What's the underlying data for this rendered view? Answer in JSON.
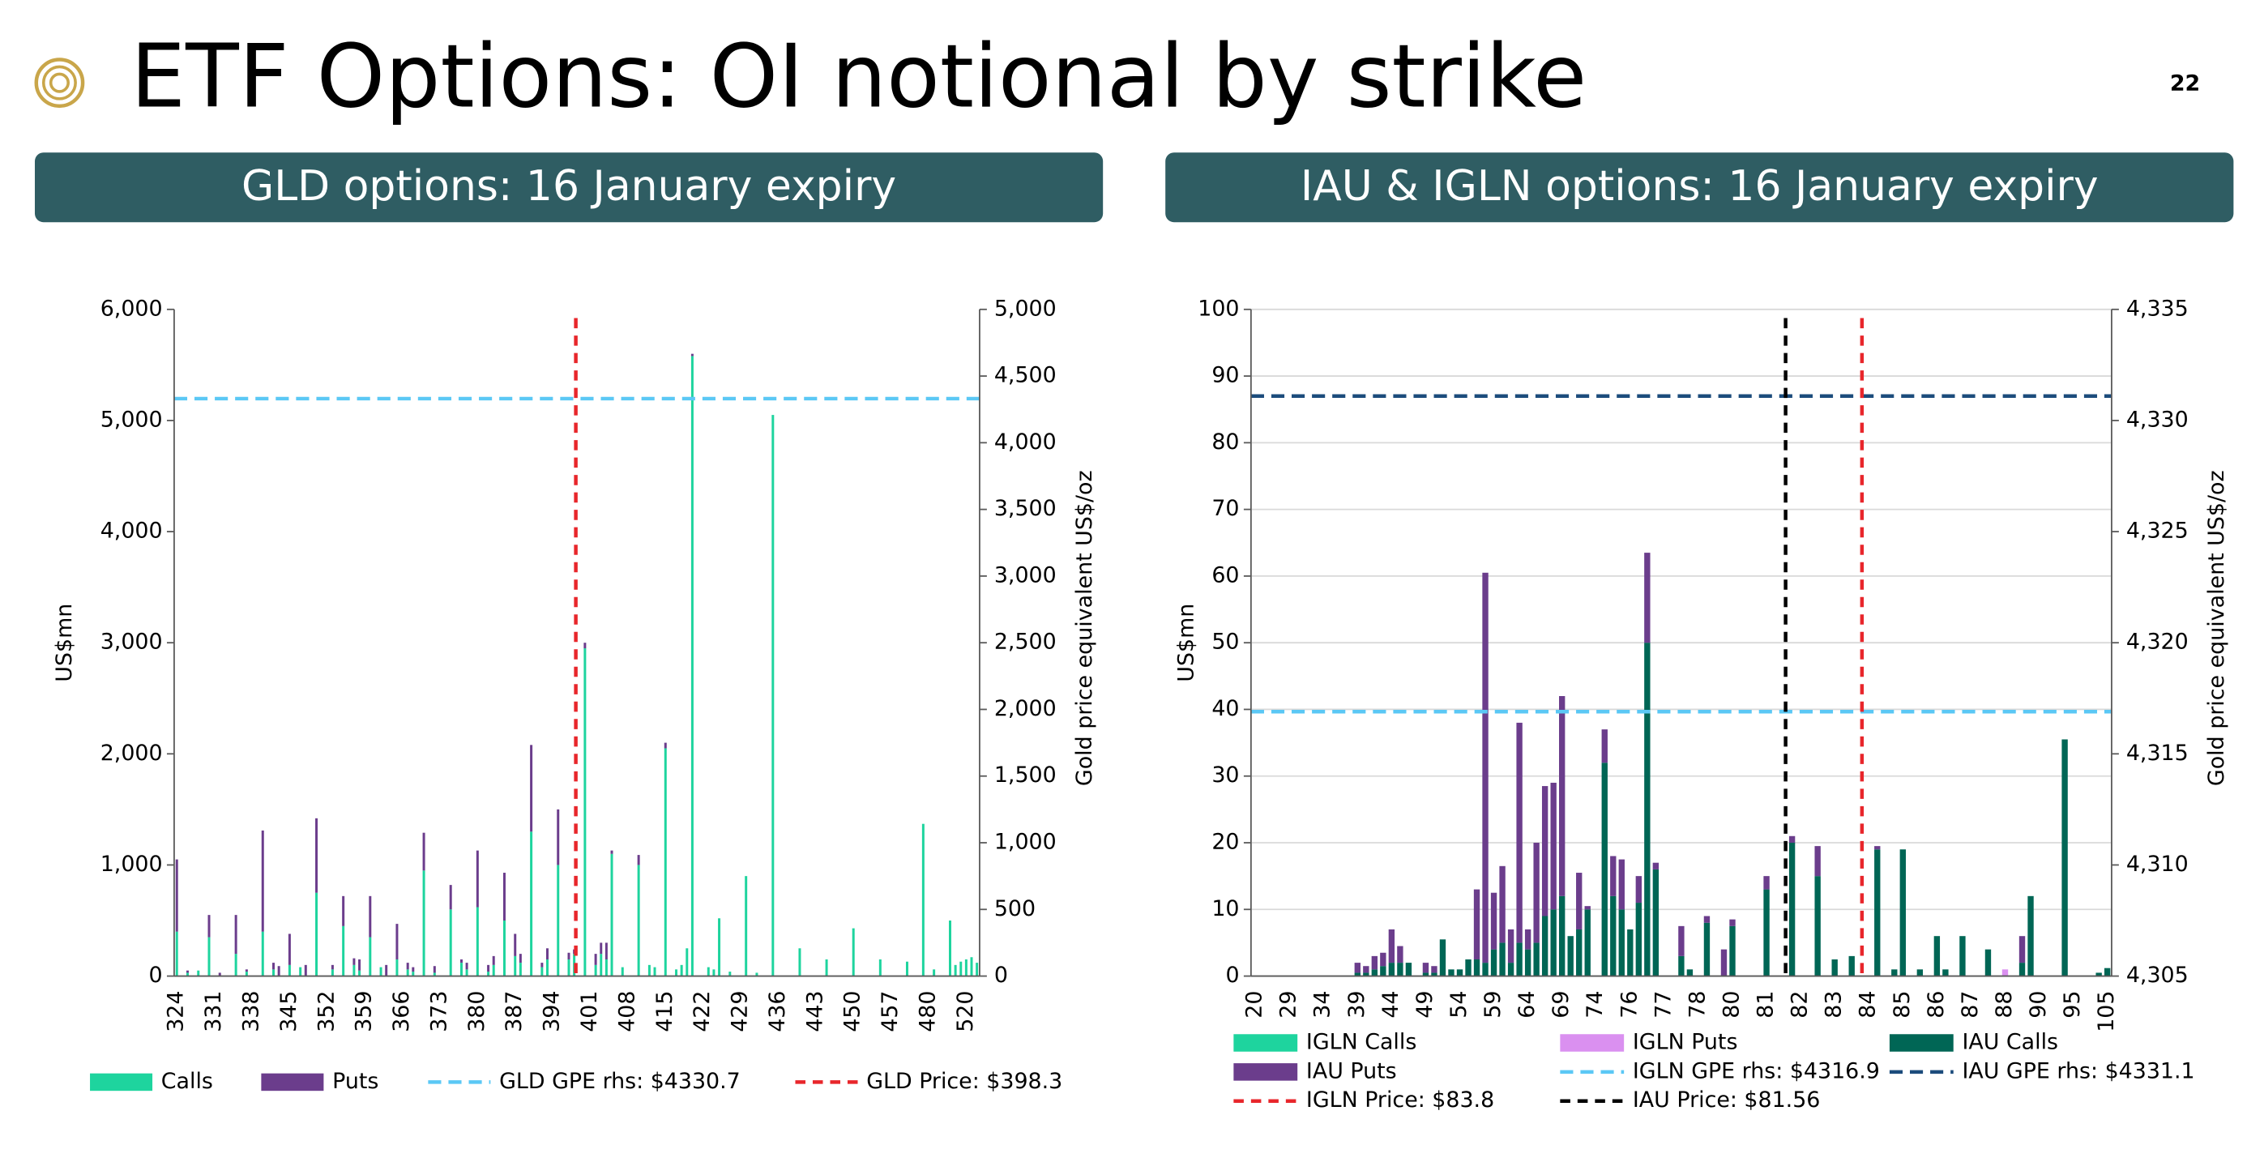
{
  "header": {
    "title": "ETF Options: OI notional by strike",
    "page_number": "22"
  },
  "chart_data": [
    {
      "type": "bar",
      "stacked": true,
      "panel_title": "GLD options: 16 January expiry",
      "y_label": "US$mn",
      "y2_label": "Gold price equivalent US$/oz",
      "categories": [
        "324",
        null,
        null,
        null,
        null,
        null,
        null,
        "331",
        null,
        null,
        null,
        null,
        null,
        null,
        "338",
        null,
        null,
        null,
        null,
        null,
        null,
        "345",
        null,
        null,
        null,
        null,
        null,
        null,
        "352",
        null,
        null,
        null,
        null,
        null,
        null,
        "359",
        null,
        null,
        null,
        null,
        null,
        null,
        "366",
        null,
        null,
        null,
        null,
        null,
        null,
        "373",
        null,
        null,
        null,
        null,
        null,
        null,
        "380",
        null,
        null,
        null,
        null,
        null,
        null,
        "387",
        null,
        null,
        null,
        null,
        null,
        null,
        "394",
        null,
        null,
        null,
        null,
        null,
        null,
        "401",
        null,
        null,
        null,
        null,
        null,
        null,
        "408",
        null,
        null,
        null,
        null,
        null,
        null,
        "415",
        null,
        null,
        null,
        null,
        null,
        null,
        "422",
        null,
        null,
        null,
        null,
        null,
        null,
        "429",
        null,
        null,
        null,
        null,
        null,
        null,
        "436",
        null,
        null,
        null,
        null,
        null,
        null,
        "443",
        null,
        null,
        null,
        null,
        null,
        null,
        "450",
        null,
        null,
        null,
        null,
        null,
        null,
        "457",
        null,
        null,
        null,
        null,
        null,
        null,
        "480",
        null,
        null,
        null,
        null,
        null,
        null,
        "520",
        null,
        null
      ],
      "series": [
        {
          "name": "Calls",
          "color": "#1ed49e",
          "values": [
            400,
            0,
            30,
            0,
            50,
            0,
            350,
            0,
            0,
            0,
            0,
            200,
            0,
            40,
            0,
            0,
            400,
            0,
            60,
            0,
            0,
            100,
            0,
            80,
            0,
            0,
            750,
            0,
            0,
            60,
            0,
            450,
            0,
            100,
            50,
            0,
            350,
            0,
            80,
            0,
            0,
            150,
            0,
            60,
            40,
            0,
            950,
            0,
            30,
            0,
            0,
            600,
            0,
            120,
            60,
            0,
            620,
            0,
            40,
            100,
            0,
            500,
            0,
            180,
            120,
            0,
            1300,
            0,
            80,
            150,
            0,
            1000,
            0,
            150,
            200,
            0,
            2950,
            0,
            100,
            200,
            150,
            1100,
            0,
            80,
            0,
            0,
            1000,
            0,
            100,
            80,
            0,
            2050,
            0,
            60,
            100,
            250,
            5580,
            0,
            0,
            80,
            60,
            520,
            0,
            40,
            0,
            0,
            900,
            0,
            30,
            0,
            0,
            5050,
            0,
            0,
            0,
            0,
            250,
            0,
            0,
            0,
            0,
            150,
            0,
            0,
            0,
            0,
            430,
            0,
            0,
            0,
            0,
            150,
            0,
            0,
            0,
            0,
            130,
            0,
            0,
            1370,
            0,
            60,
            0,
            0,
            500,
            100,
            130,
            150,
            170,
            120
          ]
        },
        {
          "name": "Puts",
          "color": "#6b3d8c",
          "values": [
            650,
            0,
            20,
            0,
            0,
            0,
            200,
            0,
            30,
            0,
            0,
            350,
            0,
            20,
            0,
            0,
            910,
            0,
            60,
            90,
            0,
            280,
            0,
            0,
            100,
            0,
            670,
            0,
            0,
            40,
            0,
            270,
            0,
            60,
            100,
            0,
            370,
            0,
            0,
            100,
            0,
            320,
            0,
            60,
            40,
            0,
            340,
            0,
            60,
            0,
            0,
            220,
            0,
            30,
            60,
            0,
            510,
            0,
            60,
            80,
            0,
            430,
            0,
            200,
            80,
            0,
            780,
            0,
            40,
            100,
            0,
            500,
            0,
            60,
            40,
            0,
            50,
            0,
            100,
            100,
            150,
            30,
            0,
            0,
            0,
            0,
            90,
            0,
            0,
            0,
            0,
            50,
            0,
            0,
            0,
            0,
            20,
            0,
            0,
            0,
            0,
            0,
            0,
            0,
            0,
            0,
            0,
            0,
            0,
            0,
            0,
            0,
            0,
            0,
            0,
            0,
            0,
            0,
            0,
            0,
            0,
            0,
            0,
            0,
            0,
            0,
            0,
            0,
            0,
            0,
            0,
            0,
            0,
            0,
            0,
            0,
            0,
            0,
            0,
            0,
            0,
            0,
            0,
            0,
            0,
            0,
            0,
            0,
            0,
            0
          ]
        }
      ],
      "lines": [
        {
          "name": "GLD GPE rhs: $4330.7",
          "kind": "hline",
          "axis": "y2",
          "value": 4330.7,
          "color": "#5bc8f5"
        },
        {
          "name": "GLD Price: $398.3",
          "kind": "vline",
          "value": 398.3,
          "color": "#e8262b"
        }
      ],
      "ylim": [
        0,
        6000
      ],
      "yticks": [
        0,
        {
          "value": 1000,
          "label": "1,000"
        },
        {
          "value": 2000,
          "label": "2,000"
        },
        {
          "value": 3000,
          "label": "3,000"
        },
        {
          "value": 4000,
          "label": "4,000"
        },
        {
          "value": 5000,
          "label": "5,000"
        },
        {
          "value": 6000,
          "label": "6,000"
        }
      ],
      "y2lim": [
        0,
        5000
      ],
      "y2ticks": [
        0,
        500,
        {
          "value": 1000,
          "label": "1,000"
        },
        {
          "value": 1500,
          "label": "1,500"
        },
        {
          "value": 2000,
          "label": "2,000"
        },
        {
          "value": 2500,
          "label": "2,500"
        },
        {
          "value": 3000,
          "label": "3,000"
        },
        {
          "value": 3500,
          "label": "3,500"
        },
        {
          "value": 4000,
          "label": "4,000"
        },
        {
          "value": 4500,
          "label": "4,500"
        },
        {
          "value": 5000,
          "label": "5,000"
        }
      ],
      "grid": false,
      "legend": "bottom"
    },
    {
      "type": "bar",
      "stacked": true,
      "panel_title": "IAU & IGLN options: 16 January expiry",
      "y_label": "US$mn",
      "y2_label": "Gold price equivalent US$/oz",
      "categories": [
        "20",
        null,
        null,
        null,
        "29",
        null,
        null,
        null,
        "34",
        null,
        null,
        null,
        "39",
        null,
        null,
        null,
        "44",
        null,
        null,
        null,
        "49",
        null,
        null,
        null,
        "54",
        null,
        null,
        null,
        "59",
        null,
        null,
        null,
        "64",
        null,
        null,
        null,
        "69",
        null,
        null,
        null,
        "74",
        null,
        null,
        null,
        "76",
        null,
        null,
        null,
        "77",
        null,
        null,
        null,
        "78",
        null,
        null,
        null,
        "80",
        null,
        null,
        null,
        "81",
        null,
        null,
        null,
        "82",
        null,
        null,
        null,
        "83",
        null,
        null,
        null,
        "84",
        null,
        null,
        null,
        "85",
        null,
        null,
        null,
        "86",
        null,
        null,
        null,
        "87",
        null,
        null,
        null,
        "88",
        null,
        null,
        null,
        "90",
        null,
        null,
        null,
        "95",
        null,
        null,
        null,
        "105"
      ],
      "series": [
        {
          "name": "IGLN Calls",
          "color": "#1ed49e",
          "values": [
            0,
            0,
            0,
            0,
            0,
            0,
            0,
            0,
            0,
            0,
            0,
            0,
            0,
            0,
            0,
            0,
            0,
            0,
            0,
            0,
            0,
            0,
            0,
            0,
            0,
            0,
            0,
            0,
            0,
            0,
            0,
            0,
            0,
            0,
            0,
            0,
            0,
            0,
            0,
            0,
            0,
            0,
            0,
            0,
            0,
            0,
            0,
            0,
            0,
            0,
            0,
            0,
            0,
            0,
            0,
            0,
            0,
            0,
            0,
            0,
            0,
            0,
            0,
            0,
            0,
            0,
            0,
            0,
            0,
            0,
            0,
            0,
            0,
            0,
            0,
            0,
            0,
            0,
            0,
            0,
            0,
            0,
            0,
            0,
            0,
            0,
            0,
            0,
            0,
            0,
            0,
            0,
            0,
            0,
            0,
            0,
            0,
            0,
            0,
            0,
            0
          ]
        },
        {
          "name": "IGLN Puts",
          "color": "#da90f0",
          "values": [
            0,
            0,
            0,
            0,
            0,
            0,
            0,
            0,
            0,
            0,
            0,
            0,
            0,
            0,
            0,
            0,
            0,
            0,
            0,
            0,
            0,
            0,
            0,
            0,
            0,
            0,
            0,
            0,
            0,
            0,
            0,
            0,
            0,
            0,
            0,
            0,
            0,
            0,
            0,
            0,
            0,
            0,
            0,
            0,
            0,
            0,
            0,
            0,
            0,
            0,
            0,
            0,
            0,
            0,
            0,
            0,
            0,
            0,
            0,
            0,
            0,
            0,
            0,
            0,
            0,
            0,
            0,
            0,
            0,
            0,
            0,
            0,
            0,
            0,
            0,
            0,
            0,
            0,
            0,
            0,
            0,
            0,
            0,
            0,
            0,
            0,
            0,
            0,
            1,
            0,
            0,
            0,
            0,
            0,
            0,
            0,
            0,
            0,
            0,
            0,
            0
          ]
        },
        {
          "name": "IAU Calls",
          "color": "#006655",
          "values": [
            0,
            0,
            0,
            0,
            0,
            0,
            0,
            0,
            0,
            0,
            0,
            0,
            0.5,
            0.5,
            1,
            1.5,
            2,
            2,
            2,
            0,
            0.5,
            0.5,
            5.5,
            1,
            1,
            2.5,
            2.5,
            2,
            4,
            5,
            2,
            5,
            4,
            5,
            9,
            10,
            12,
            6,
            7,
            10,
            0,
            32,
            12,
            10,
            7,
            11,
            50,
            16,
            0,
            0,
            3,
            1,
            0,
            8,
            0,
            0,
            7.5,
            0,
            0,
            0,
            13,
            0,
            0,
            20,
            0,
            0,
            15,
            0,
            2.5,
            0,
            3,
            0,
            0,
            19,
            0,
            1,
            19,
            0,
            1,
            0,
            6,
            1,
            0,
            6,
            0,
            0,
            4,
            0,
            0,
            0,
            2,
            12,
            0,
            0,
            0,
            35.5,
            0,
            0,
            0,
            0.5,
            1.2
          ]
        },
        {
          "name": "IAU Puts",
          "color": "#6b3d8c",
          "values": [
            0,
            0,
            0,
            0,
            0,
            0,
            0,
            0,
            0,
            0,
            0,
            0,
            1.5,
            1,
            2,
            2,
            5,
            2.5,
            0,
            0,
            1.5,
            1,
            0,
            0,
            0,
            0,
            10.5,
            58.5,
            8.5,
            11.5,
            5,
            33,
            3,
            15,
            19.5,
            19,
            30,
            0,
            8.5,
            0.5,
            0,
            5,
            6,
            7.5,
            0,
            4,
            13.5,
            1,
            0,
            0,
            4.5,
            0,
            0,
            1,
            0,
            4,
            1,
            0,
            0,
            0,
            2,
            0,
            0,
            1,
            0,
            0,
            4.5,
            0,
            0,
            0,
            0,
            0,
            0,
            0.5,
            0,
            0,
            0,
            0,
            0,
            0,
            0,
            0,
            0,
            0,
            0,
            0,
            0,
            0,
            0,
            0,
            4,
            0,
            0,
            0,
            0,
            0,
            0,
            0,
            0,
            0,
            0
          ]
        }
      ],
      "lines": [
        {
          "name": "IGLN GPE rhs: $4316.9",
          "kind": "hline",
          "axis": "y2",
          "value": 4316.9,
          "color": "#5bc8f5"
        },
        {
          "name": "IAU GPE rhs: $4331.1",
          "kind": "hline",
          "axis": "y2",
          "value": 4331.1,
          "color": "#1c4c7c"
        },
        {
          "name": "IGLN Price: $83.8",
          "kind": "vline",
          "value": 83.8,
          "color": "#e8262b"
        },
        {
          "name": "IAU Price: $81.56",
          "kind": "vline",
          "value": 81.56,
          "color": "#000000"
        }
      ],
      "ylim": [
        0,
        100
      ],
      "yticks": [
        0,
        10,
        20,
        30,
        40,
        50,
        60,
        70,
        80,
        90,
        100
      ],
      "y2lim": [
        4305,
        4335
      ],
      "y2ticks": [
        {
          "value": 4305,
          "label": "4,305"
        },
        {
          "value": 4310,
          "label": "4,310"
        },
        {
          "value": 4315,
          "label": "4,315"
        },
        {
          "value": 4320,
          "label": "4,320"
        },
        {
          "value": 4325,
          "label": "4,325"
        },
        {
          "value": 4330,
          "label": "4,330"
        },
        {
          "value": 4335,
          "label": "4,335"
        }
      ],
      "grid": true,
      "legend": "bottom"
    }
  ]
}
